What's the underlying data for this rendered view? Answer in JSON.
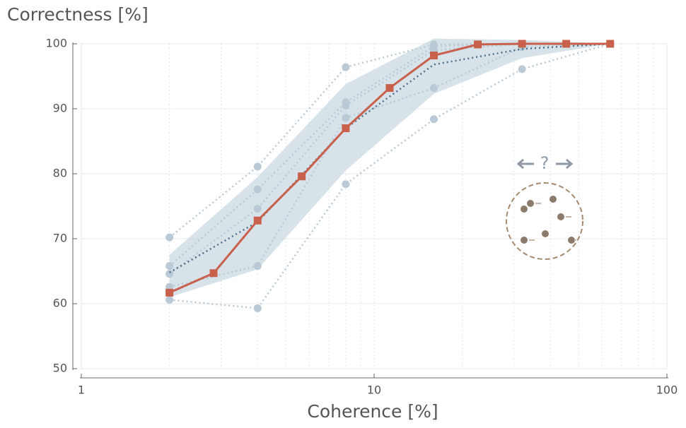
{
  "chart_data": {
    "type": "line",
    "ylabel": "Correctness [%]",
    "xlabel": "Coherence [%]",
    "annotation": "?",
    "xscale": "log",
    "xlim": [
      1,
      100
    ],
    "xticks": [
      1,
      10,
      100
    ],
    "xminorticks": [
      2,
      3,
      4,
      5,
      6,
      7,
      8,
      9,
      20,
      30,
      40,
      50,
      60,
      70,
      80,
      90
    ],
    "ylim": [
      50,
      100
    ],
    "yticks": [
      50,
      60,
      70,
      80,
      90,
      100
    ],
    "grid": true,
    "band": {
      "color": "#c9d8e2",
      "x": [
        2,
        4,
        8,
        16,
        32,
        64
      ],
      "upper": [
        67.5,
        79.5,
        93.8,
        100.8,
        100.6,
        100
      ],
      "lower": [
        61.0,
        65.3,
        80.5,
        92.3,
        97.8,
        100
      ]
    },
    "series": [
      {
        "style": "dotted-points",
        "color": "#b9c9d5",
        "x": [
          2,
          4,
          8,
          16,
          32,
          64
        ],
        "values": [
          70.2,
          81.1,
          96.4,
          99.9,
          100,
          100
        ]
      },
      {
        "style": "dotted-points",
        "color": "#b9c9d5",
        "x": [
          2,
          4,
          8,
          16,
          32,
          64
        ],
        "values": [
          65.8,
          77.6,
          91.0,
          99.6,
          100,
          100
        ]
      },
      {
        "style": "dotted-points",
        "color": "#b9c9d5",
        "x": [
          2,
          4,
          8,
          16,
          32,
          64
        ],
        "values": [
          64.6,
          74.6,
          90.5,
          99.0,
          100,
          100
        ]
      },
      {
        "style": "dotted-points",
        "color": "#b9c9d5",
        "x": [
          2,
          4,
          8,
          16,
          32,
          64
        ],
        "values": [
          62.6,
          65.8,
          88.6,
          93.2,
          99.5,
          100
        ]
      },
      {
        "style": "dotted-points",
        "color": "#b9c9d5",
        "x": [
          2,
          4,
          8,
          16,
          32,
          64
        ],
        "values": [
          60.6,
          59.3,
          78.4,
          88.4,
          96.1,
          100
        ]
      },
      {
        "style": "dotted",
        "color": "#4d6f8c",
        "x": [
          2,
          4,
          8,
          16,
          32,
          64
        ],
        "values": [
          64.8,
          72.6,
          87.0,
          96.8,
          99.2,
          100
        ]
      },
      {
        "style": "solid-squares",
        "color": "#c8604c",
        "x": [
          2,
          2.83,
          4,
          5.66,
          8,
          11.3,
          16,
          22.6,
          32,
          45.3,
          64
        ],
        "values": [
          61.7,
          64.7,
          72.8,
          79.6,
          87.0,
          93.2,
          98.2,
          99.9,
          100,
          100,
          100
        ]
      }
    ]
  }
}
